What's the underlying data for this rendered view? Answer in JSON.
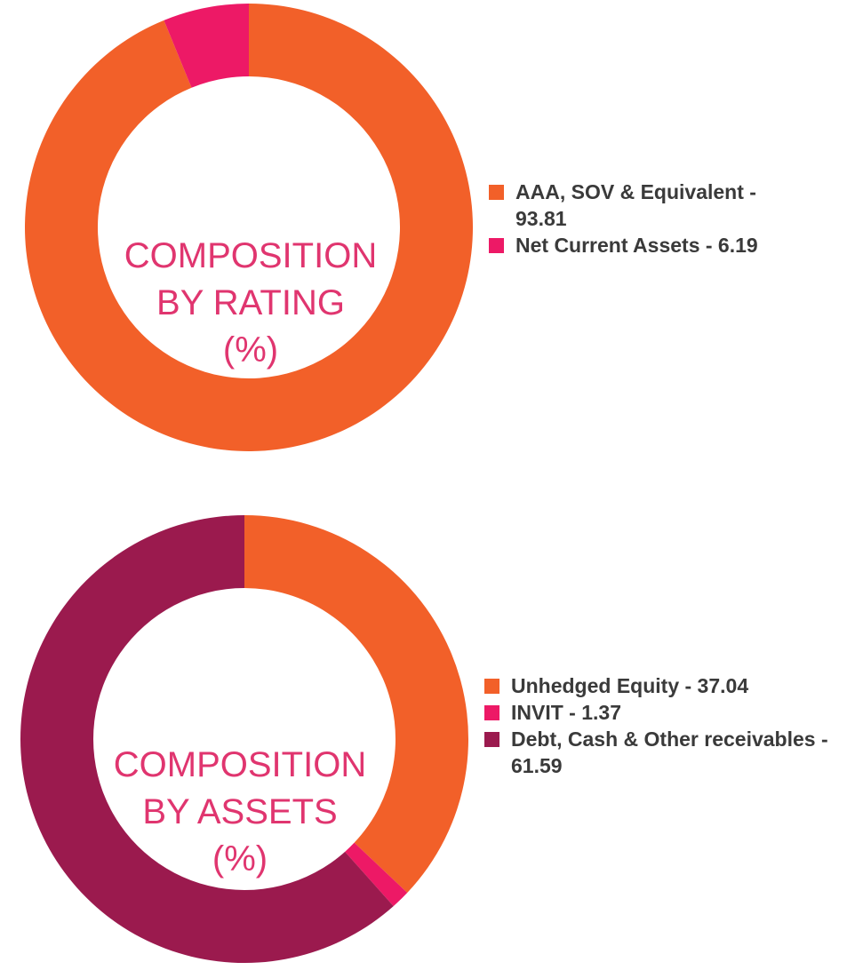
{
  "chart_data": [
    {
      "type": "pie",
      "donut": true,
      "title_lines": [
        "COMPOSITION",
        "BY RATING",
        "(%)"
      ],
      "slices": [
        {
          "label": "AAA, SOV & Equivalent",
          "value": 93.81,
          "legend_text": "AAA, SOV & Equivalent - 93.81",
          "color": "#f26029"
        },
        {
          "label": "Net Current Assets",
          "value": 6.19,
          "legend_text": "Net Current Assets - 6.19",
          "color": "#ed1966"
        }
      ],
      "legend_placement": "right"
    },
    {
      "type": "pie",
      "donut": true,
      "title_lines": [
        "COMPOSITION",
        "BY ASSETS",
        "(%)"
      ],
      "slices": [
        {
          "label": "Unhedged Equity",
          "value": 37.04,
          "legend_text": "Unhedged Equity - 37.04",
          "color": "#f26029"
        },
        {
          "label": "INVIT",
          "value": 1.37,
          "legend_text": "INVIT - 1.37",
          "color": "#ed1966"
        },
        {
          "label": "Debt, Cash & Other receivables",
          "value": 61.59,
          "legend_text": "Debt, Cash & Other receivables - 61.59",
          "color": "#9b1a4e"
        }
      ],
      "legend_placement": "right"
    }
  ]
}
